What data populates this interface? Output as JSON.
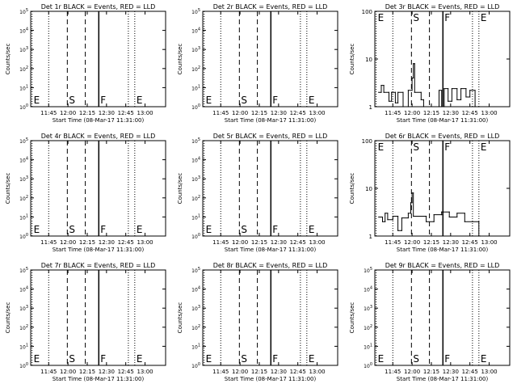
{
  "chart_data": {
    "type": "line",
    "shared": {
      "xticks": [
        "11:45",
        "12:00",
        "12:15",
        "12:30",
        "12:45",
        "13:00"
      ],
      "xlabel": "Start Time (08-Mar-17 11:31:00)",
      "ylabel": "Counts/sec",
      "x_range_minutes_after_start": [
        0,
        105
      ],
      "markers": [
        {
          "label": "E",
          "minute": 1,
          "line": "dotted"
        },
        {
          "label": "S",
          "minute": 28.5,
          "line": "dashed"
        },
        {
          "label": "",
          "minute": 42.5,
          "line": "dashed"
        },
        {
          "label": "F",
          "minute": 53,
          "line": "solid"
        },
        {
          "label": "E",
          "minute": 81,
          "line": "dotted"
        },
        {
          "label": "",
          "minute": 14,
          "line": "dotted"
        }
      ],
      "marker_line_extra": {
        "minute": 76,
        "line": "dotted"
      }
    },
    "panels": [
      {
        "title": "Det 1r BLACK = Events, RED = LLD",
        "yscale": "log",
        "yticks": [
          "10^0",
          "10^1",
          "10^2",
          "10^3",
          "10^4",
          "10^5"
        ],
        "series": []
      },
      {
        "title": "Det 2r BLACK = Events, RED = LLD",
        "yscale": "log",
        "yticks": [
          "10^0",
          "10^1",
          "10^2",
          "10^3",
          "10^4",
          "10^5"
        ],
        "series": []
      },
      {
        "title": "Det 3r BLACK = Events, RED = LLD",
        "yscale": "log",
        "yticks": [
          "1",
          "10",
          "100"
        ],
        "ylim": [
          1,
          100
        ],
        "series": [
          {
            "color": "#000000",
            "points": [
              [
                3,
                2
              ],
              [
                5,
                2
              ],
              [
                5,
                2.8
              ],
              [
                7,
                2.8
              ],
              [
                7,
                2
              ],
              [
                11,
                2
              ],
              [
                11,
                1.3
              ],
              [
                13,
                1.3
              ],
              [
                13,
                2
              ],
              [
                16,
                2
              ],
              [
                16,
                1.2
              ],
              [
                18,
                1.2
              ],
              [
                18,
                2
              ],
              [
                22,
                2
              ],
              [
                22,
                1
              ],
              [
                26,
                1
              ],
              [
                26,
                2.2
              ],
              [
                29,
                2.2
              ],
              [
                29,
                4
              ],
              [
                30,
                4
              ],
              [
                30,
                8
              ],
              [
                31,
                8
              ],
              [
                31,
                2
              ],
              [
                36,
                2
              ],
              [
                36,
                1.4
              ],
              [
                38,
                1.4
              ],
              [
                38,
                1
              ],
              [
                50,
                1
              ],
              [
                50,
                2.2
              ],
              [
                52,
                2.2
              ],
              [
                52,
                1
              ],
              [
                54,
                1
              ],
              [
                54,
                2.4
              ],
              [
                57,
                2.4
              ],
              [
                57,
                1.3
              ],
              [
                60,
                1.3
              ],
              [
                60,
                2.4
              ],
              [
                64,
                2.4
              ],
              [
                64,
                1.4
              ],
              [
                67,
                1.4
              ],
              [
                67,
                2.4
              ],
              [
                71,
                2.4
              ],
              [
                71,
                1.6
              ],
              [
                74,
                1.6
              ],
              [
                74,
                2.2
              ],
              [
                78,
                2.2
              ],
              [
                78,
                1
              ],
              [
                81,
                1
              ]
            ]
          }
        ]
      },
      {
        "title": "Det 4r BLACK = Events, RED = LLD",
        "yscale": "log",
        "yticks": [
          "10^0",
          "10^1",
          "10^2",
          "10^3",
          "10^4",
          "10^5"
        ],
        "series": []
      },
      {
        "title": "Det 5r BLACK = Events, RED = LLD",
        "yscale": "log",
        "yticks": [
          "10^0",
          "10^1",
          "10^2",
          "10^3",
          "10^4",
          "10^5"
        ],
        "series": []
      },
      {
        "title": "Det 6r BLACK = Events, RED = LLD",
        "yscale": "log",
        "yticks": [
          "1",
          "10",
          "100"
        ],
        "ylim": [
          1,
          100
        ],
        "series": [
          {
            "color": "#000000",
            "points": [
              [
                3,
                2.5
              ],
              [
                6,
                2.5
              ],
              [
                6,
                2
              ],
              [
                8,
                2
              ],
              [
                8,
                3
              ],
              [
                10,
                3
              ],
              [
                10,
                2.2
              ],
              [
                14,
                2.2
              ],
              [
                14,
                2.6
              ],
              [
                18,
                2.6
              ],
              [
                18,
                1.3
              ],
              [
                21,
                1.3
              ],
              [
                21,
                2.4
              ],
              [
                26,
                2.4
              ],
              [
                26,
                3
              ],
              [
                28,
                3
              ],
              [
                28,
                5
              ],
              [
                29,
                5
              ],
              [
                29,
                8
              ],
              [
                30,
                8
              ],
              [
                30,
                2.6
              ],
              [
                40,
                2.6
              ],
              [
                40,
                2
              ],
              [
                46,
                2
              ],
              [
                46,
                2.8
              ],
              [
                52,
                2.8
              ],
              [
                52,
                3.2
              ],
              [
                58,
                3.2
              ],
              [
                58,
                2.5
              ],
              [
                64,
                2.5
              ],
              [
                64,
                3
              ],
              [
                70,
                3
              ],
              [
                70,
                2
              ],
              [
                81,
                2
              ],
              [
                81,
                1
              ],
              [
                82,
                1
              ]
            ]
          }
        ]
      },
      {
        "title": "Det 7r BLACK = Events, RED = LLD",
        "yscale": "log",
        "yticks": [
          "10^0",
          "10^1",
          "10^2",
          "10^3",
          "10^4",
          "10^5"
        ],
        "series": []
      },
      {
        "title": "Det 8r BLACK = Events, RED = LLD",
        "yscale": "log",
        "yticks": [
          "10^0",
          "10^1",
          "10^2",
          "10^3",
          "10^4",
          "10^5"
        ],
        "series": []
      },
      {
        "title": "Det 9r BLACK = Events, RED = LLD",
        "yscale": "log",
        "yticks": [
          "10^0",
          "10^1",
          "10^2",
          "10^3",
          "10^4",
          "10^5"
        ],
        "series": []
      }
    ]
  }
}
